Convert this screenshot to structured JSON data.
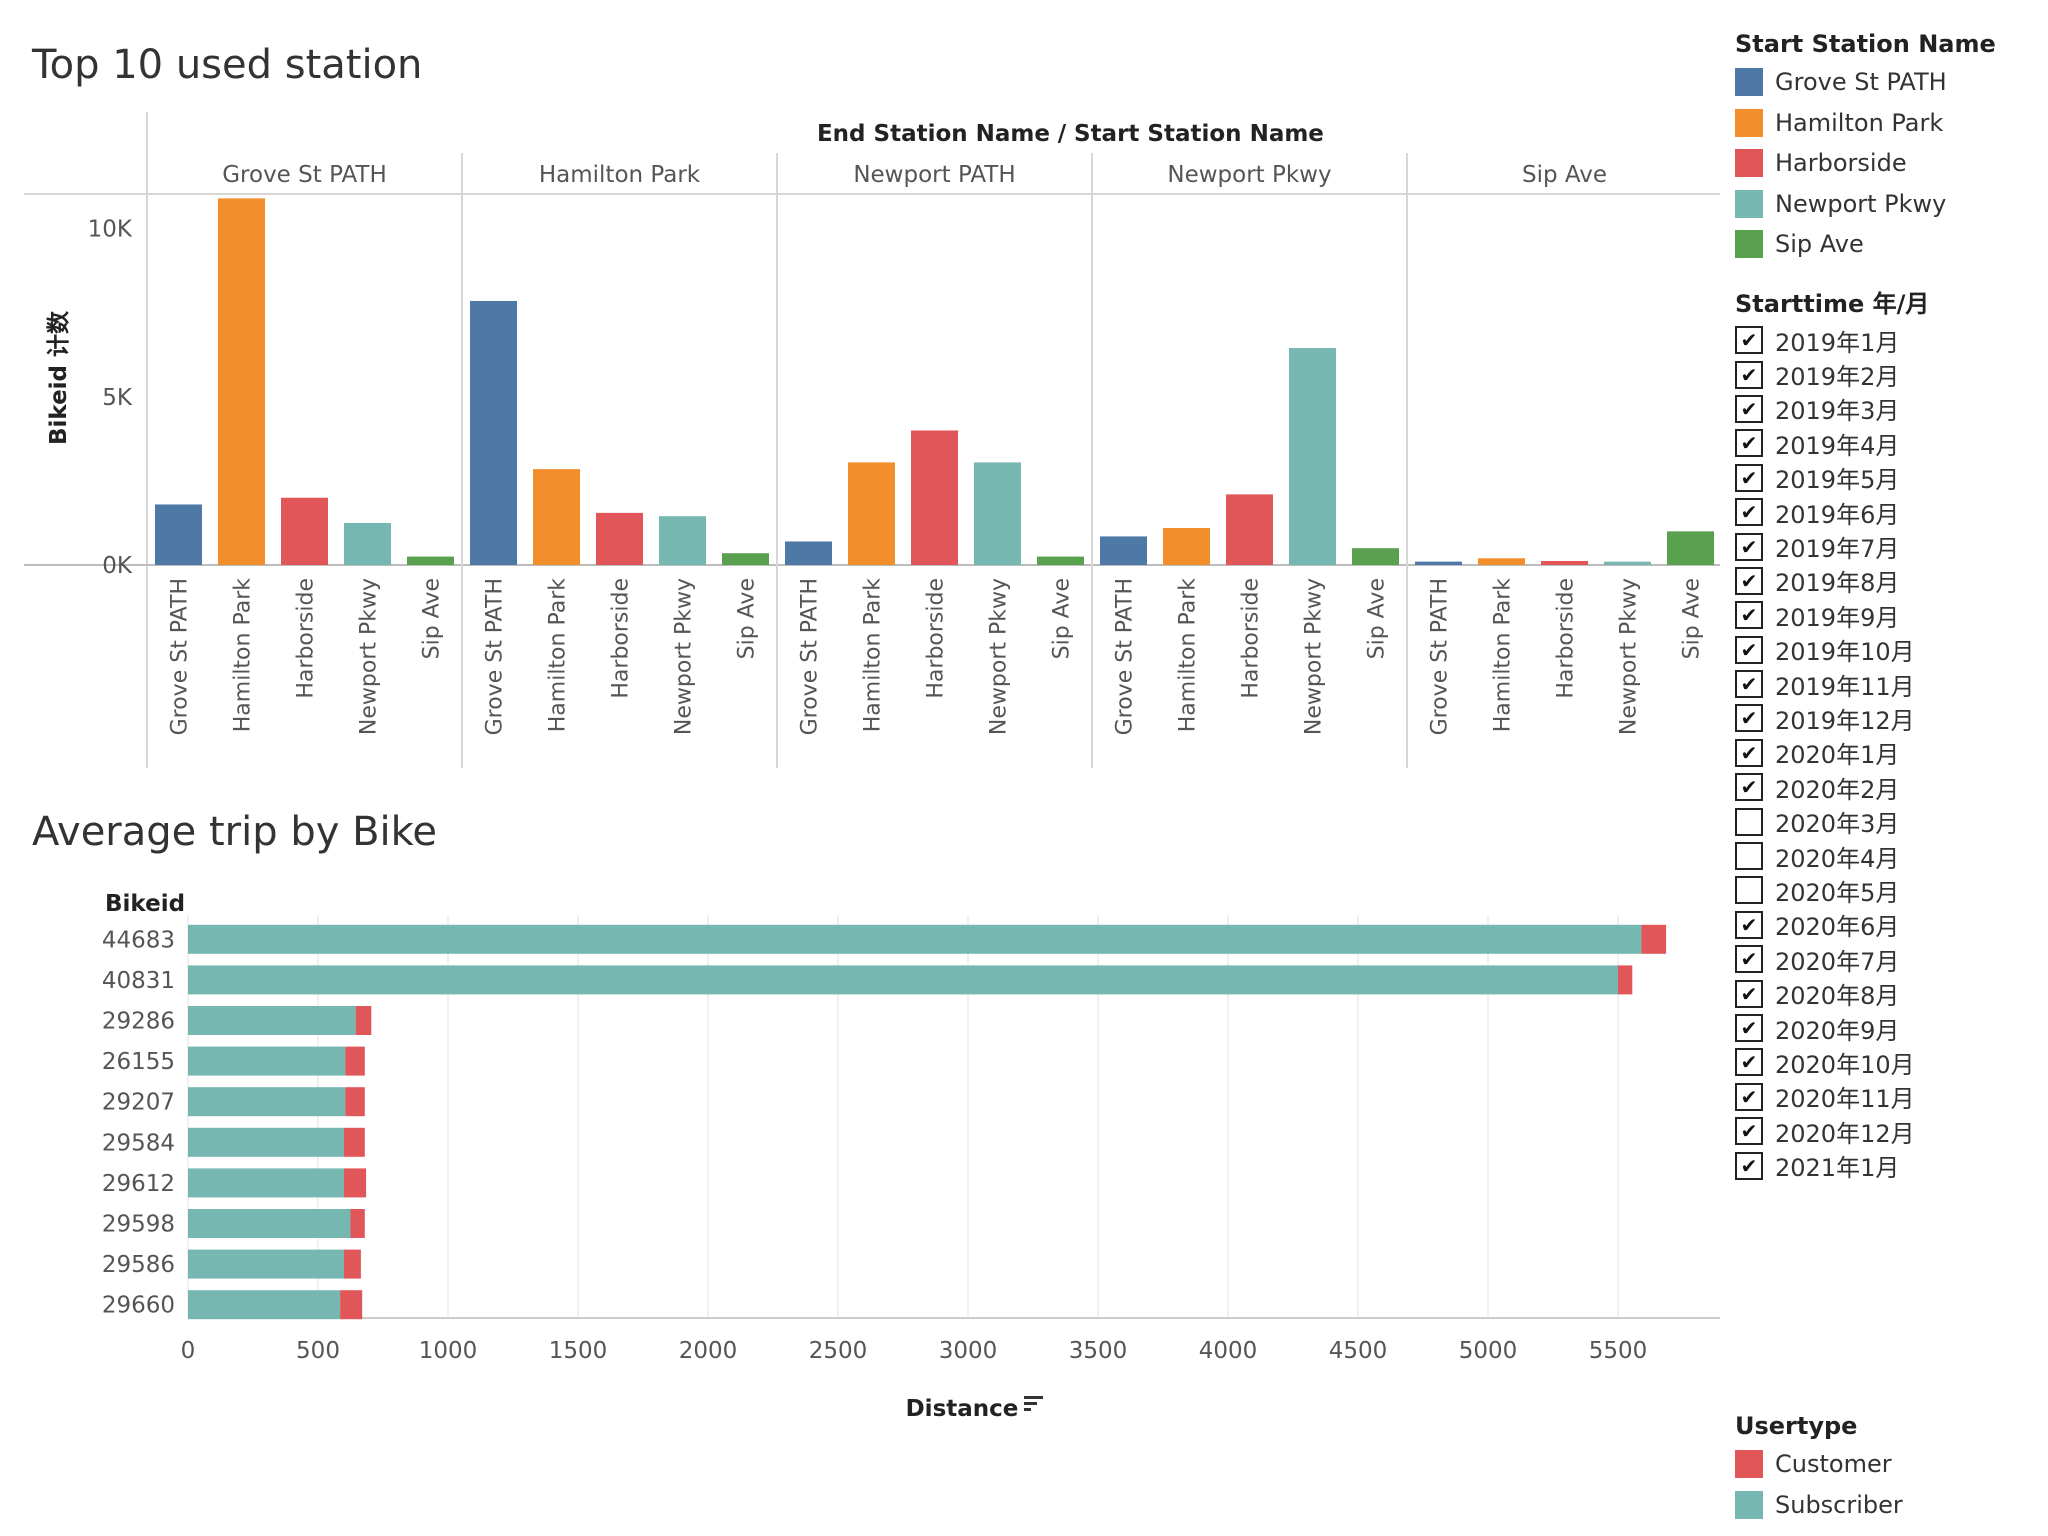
{
  "colors": {
    "Grove St PATH": "#4e79a7",
    "Hamilton Park": "#f28e2b",
    "Harborside": "#e15759",
    "Newport Pkwy": "#76b7b2",
    "Sip Ave": "#59a14f",
    "Customer": "#e15759",
    "Subscriber": "#76b7b2"
  },
  "top_chart": {
    "title": "Top 10 used station",
    "header_title_left": "End Station Name",
    "header_sep": "/",
    "header_title_right": "Start Station Name",
    "ylabel": "Bikeid 计数",
    "yticks": [
      {
        "v": 0,
        "label": "0K"
      },
      {
        "v": 5000,
        "label": "5K"
      },
      {
        "v": 10000,
        "label": "10K"
      }
    ]
  },
  "bottom_chart": {
    "title": "Average trip by Bike",
    "row_header": "Bikeid",
    "xlabel": "Distance",
    "sort_icon": "sort-descending-icon"
  },
  "chart_data": [
    {
      "type": "bar",
      "title": "Top 10 used station",
      "ylabel": "Bikeid 计数",
      "ylim": [
        0,
        11000
      ],
      "panel_field": "End Station Name",
      "panels": [
        "Grove St PATH",
        "Hamilton Park",
        "Newport PATH",
        "Newport Pkwy",
        "Sip Ave"
      ],
      "categories": [
        "Grove St PATH",
        "Hamilton Park",
        "Harborside",
        "Newport Pkwy",
        "Sip Ave"
      ],
      "series_field": "Start Station Name",
      "values": [
        [
          1800,
          10900,
          2000,
          1250,
          250
        ],
        [
          7850,
          2850,
          1550,
          1450,
          350
        ],
        [
          700,
          3050,
          4000,
          3050,
          250
        ],
        [
          850,
          1100,
          2100,
          6450,
          500
        ],
        [
          100,
          200,
          120,
          100,
          1000
        ]
      ]
    },
    {
      "type": "bar",
      "orientation": "horizontal",
      "stacked": true,
      "title": "Average trip by Bike",
      "xlabel": "Distance",
      "ylabel": "Bikeid",
      "xlim": [
        0,
        5900
      ],
      "xticks": [
        0,
        500,
        1000,
        1500,
        2000,
        2500,
        3000,
        3500,
        4000,
        4500,
        5000,
        5500
      ],
      "categories": [
        "44683",
        "40831",
        "29286",
        "26155",
        "29207",
        "29584",
        "29612",
        "29598",
        "29586",
        "29660"
      ],
      "series": [
        {
          "name": "Subscriber",
          "values": [
            5590,
            5500,
            645,
            605,
            605,
            600,
            600,
            625,
            600,
            585
          ]
        },
        {
          "name": "Customer",
          "values": [
            95,
            55,
            60,
            75,
            75,
            80,
            85,
            55,
            65,
            85
          ]
        }
      ]
    }
  ],
  "legend_station": {
    "title": "Start Station Name",
    "items": [
      "Grove St PATH",
      "Hamilton Park",
      "Harborside",
      "Newport Pkwy",
      "Sip Ave"
    ]
  },
  "filter": {
    "title": "Starttime 年/月",
    "items": [
      {
        "label": "2019年1月",
        "checked": true
      },
      {
        "label": "2019年2月",
        "checked": true
      },
      {
        "label": "2019年3月",
        "checked": true
      },
      {
        "label": "2019年4月",
        "checked": true
      },
      {
        "label": "2019年5月",
        "checked": true
      },
      {
        "label": "2019年6月",
        "checked": true
      },
      {
        "label": "2019年7月",
        "checked": true
      },
      {
        "label": "2019年8月",
        "checked": true
      },
      {
        "label": "2019年9月",
        "checked": true
      },
      {
        "label": "2019年10月",
        "checked": true
      },
      {
        "label": "2019年11月",
        "checked": true
      },
      {
        "label": "2019年12月",
        "checked": true
      },
      {
        "label": "2020年1月",
        "checked": true
      },
      {
        "label": "2020年2月",
        "checked": true
      },
      {
        "label": "2020年3月",
        "checked": false
      },
      {
        "label": "2020年4月",
        "checked": false
      },
      {
        "label": "2020年5月",
        "checked": false
      },
      {
        "label": "2020年6月",
        "checked": true
      },
      {
        "label": "2020年7月",
        "checked": true
      },
      {
        "label": "2020年8月",
        "checked": true
      },
      {
        "label": "2020年9月",
        "checked": true
      },
      {
        "label": "2020年10月",
        "checked": true
      },
      {
        "label": "2020年11月",
        "checked": true
      },
      {
        "label": "2020年12月",
        "checked": true
      },
      {
        "label": "2021年1月",
        "checked": true
      }
    ]
  },
  "legend_usertype": {
    "title": "Usertype",
    "items": [
      "Customer",
      "Subscriber"
    ]
  }
}
